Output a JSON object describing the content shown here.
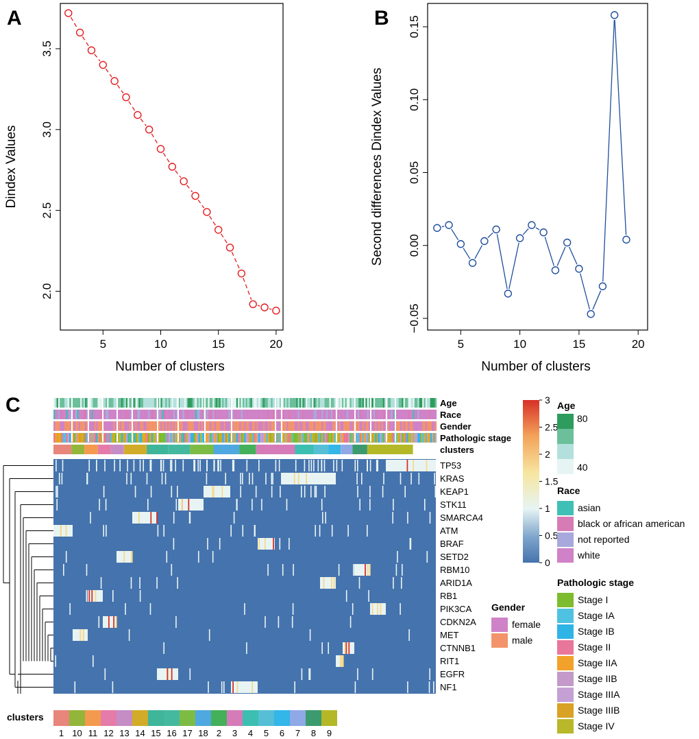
{
  "panel_labels": [
    "A",
    "B",
    "C"
  ],
  "chart_data": [
    {
      "type": "line",
      "panel": "A",
      "xlabel": "Number of clusters",
      "ylabel": "Dindex Values",
      "x": [
        2,
        3,
        4,
        5,
        6,
        7,
        8,
        9,
        10,
        11,
        12,
        13,
        14,
        15,
        16,
        17,
        18,
        19,
        20
      ],
      "y": [
        3.72,
        3.6,
        3.49,
        3.4,
        3.3,
        3.2,
        3.09,
        3.0,
        2.88,
        2.77,
        2.68,
        2.59,
        2.49,
        2.38,
        2.27,
        2.11,
        1.92,
        1.9,
        1.88
      ],
      "xlim": [
        1.3,
        20.6
      ],
      "ylim": [
        1.76,
        3.78
      ],
      "xticks": [
        5,
        10,
        15,
        20
      ],
      "yticks": [
        2.0,
        2.5,
        3.0,
        3.5
      ],
      "xtick_labels": [
        "5",
        "10",
        "15",
        "20"
      ],
      "ytick_labels": [
        "2.0",
        "2.5",
        "3.0",
        "3.5"
      ],
      "color": "#e41a1c",
      "line_style": "dashed",
      "grid": false
    },
    {
      "type": "line",
      "panel": "B",
      "xlabel": "Number of clusters",
      "ylabel": "Second differences Dindex Values",
      "x": [
        3,
        4,
        5,
        6,
        7,
        8,
        9,
        10,
        11,
        12,
        13,
        14,
        15,
        16,
        17,
        18,
        19
      ],
      "y": [
        0.012,
        0.014,
        0.001,
        -0.012,
        0.003,
        0.011,
        -0.033,
        0.005,
        0.014,
        0.009,
        -0.017,
        0.002,
        -0.016,
        -0.047,
        -0.028,
        0.158,
        0.004
      ],
      "xlim": [
        2.2,
        20.8
      ],
      "ylim": [
        -0.058,
        0.166
      ],
      "xticks": [
        5,
        10,
        15,
        20
      ],
      "yticks": [
        -0.05,
        0.0,
        0.05,
        0.1,
        0.15
      ],
      "xtick_labels": [
        "5",
        "10",
        "15",
        "20"
      ],
      "ytick_labels": [
        "−0.05",
        "0.00",
        "0.05",
        "0.10",
        "0.15"
      ],
      "color": "#1f4e9c",
      "line_style": "solid",
      "grid": false
    },
    {
      "type": "heatmap",
      "panel": "C",
      "rows": [
        "TP53",
        "KRAS",
        "KEAP1",
        "STK11",
        "SMARCA4",
        "ATM",
        "BRAF",
        "SETD2",
        "RBM10",
        "ARID1A",
        "RB1",
        "PIK3CA",
        "CDKN2A",
        "MET",
        "CTNNB1",
        "RIT1",
        "EGFR",
        "NF1"
      ],
      "annotation_tracks": [
        "Age",
        "Race",
        "Gender",
        "Pathologic stage",
        "clusters"
      ],
      "cluster_order": [
        "1",
        "10",
        "11",
        "12",
        "13",
        "14",
        "15",
        "16",
        "17",
        "18",
        "2",
        "3",
        "4",
        "5",
        "6",
        "7",
        "8",
        "9"
      ],
      "cluster_colors": [
        "#e8867c",
        "#93b53a",
        "#f39a4f",
        "#e57ba8",
        "#c58cc6",
        "#d2ac28",
        "#3fb59a",
        "#45b9a0",
        "#7cbc45",
        "#4fa8e0",
        "#45b05a",
        "#d57bb8",
        "#3cbfb0",
        "#56bfd6",
        "#33b6e8",
        "#8fa8e6",
        "#3c9a6f",
        "#b4b827"
      ],
      "heat_colorbar": {
        "ticks": [
          "0",
          "0.5",
          "1",
          "1.5",
          "2",
          "2.5",
          "3"
        ],
        "low": "#4573ad",
        "mid": "#e6f4f4",
        "high": "#d73027"
      },
      "age_legend": {
        "title": "Age",
        "labels": [
          "80",
          "40"
        ],
        "colors": [
          "#2e9c5c",
          "#6bbf9a",
          "#b3e0dc",
          "#e6f5f4"
        ]
      },
      "race_legend": {
        "title": "Race",
        "labels": [
          "asian",
          "black or african american",
          "not reported",
          "white"
        ],
        "colors": [
          "#3fbfb5",
          "#d77bb4",
          "#a8a8dc",
          "#cf82c7"
        ]
      },
      "gender_legend": {
        "title": "Gender",
        "labels": [
          "female",
          "male"
        ],
        "colors": [
          "#cf82c7",
          "#f2936b"
        ]
      },
      "stage_legend": {
        "title": "Pathologic stage",
        "labels": [
          "Stage I",
          "Stage IA",
          "Stage IB",
          "Stage II",
          "Stage IIA",
          "Stage IIB",
          "Stage IIIA",
          "Stage IIIB",
          "Stage IV"
        ],
        "colors": [
          "#7cbc2e",
          "#4ec2e0",
          "#2fb4e6",
          "#e8779b",
          "#f2a22a",
          "#c39ac9",
          "#c4a0d4",
          "#d9a224",
          "#b8b82a"
        ]
      },
      "clusters_legend_title": "clusters"
    }
  ]
}
